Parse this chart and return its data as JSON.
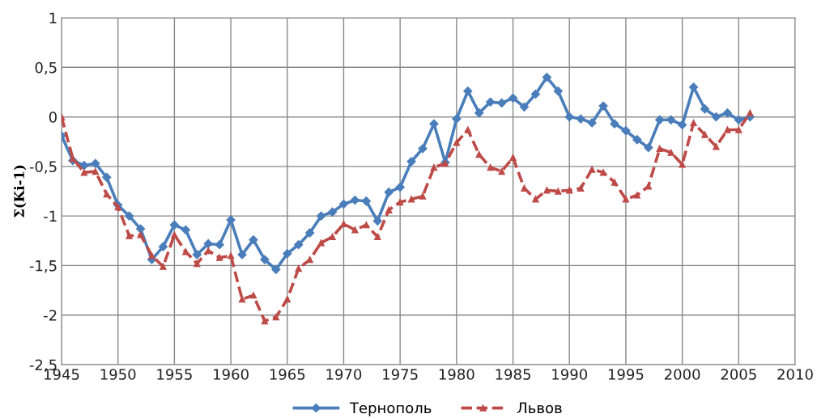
{
  "chart_data": {
    "type": "line",
    "ylabel": "Σ(Ki-1)",
    "x": [
      1945,
      1946,
      1947,
      1948,
      1949,
      1950,
      1951,
      1952,
      1953,
      1954,
      1955,
      1956,
      1957,
      1958,
      1959,
      1960,
      1961,
      1962,
      1963,
      1964,
      1965,
      1966,
      1967,
      1968,
      1969,
      1970,
      1971,
      1972,
      1973,
      1974,
      1975,
      1976,
      1977,
      1978,
      1979,
      1980,
      1981,
      1982,
      1983,
      1984,
      1985,
      1986,
      1987,
      1988,
      1989,
      1990,
      1991,
      1992,
      1993,
      1994,
      1995,
      1996,
      1997,
      1998,
      1999,
      2000,
      2001,
      2002,
      2003,
      2004,
      2005,
      2006
    ],
    "series": [
      {
        "name": "Тернополь",
        "color": "#4a7ebb",
        "marker": "diamond",
        "line_style": "solid",
        "values": [
          -0.19,
          -0.44,
          -0.49,
          -0.47,
          -0.61,
          -0.89,
          -1.0,
          -1.13,
          -1.44,
          -1.31,
          -1.09,
          -1.14,
          -1.39,
          -1.28,
          -1.29,
          -1.04,
          -1.39,
          -1.24,
          -1.44,
          -1.54,
          -1.38,
          -1.29,
          -1.17,
          -1.0,
          -0.96,
          -0.88,
          -0.84,
          -0.85,
          -1.05,
          -0.76,
          -0.71,
          -0.45,
          -0.32,
          -0.07,
          -0.46,
          -0.02,
          0.26,
          0.04,
          0.15,
          0.14,
          0.19,
          0.1,
          0.23,
          0.4,
          0.26,
          0,
          -0.02,
          -0.06,
          0.11,
          -0.07,
          -0.14,
          -0.23,
          -0.31,
          -0.03,
          -0.03,
          -0.08,
          0.3,
          0.08,
          0,
          0.04,
          -0.03,
          0.0
        ]
      },
      {
        "name": "Львов",
        "color": "#be4b48",
        "marker": "triangle",
        "line_style": "dashed",
        "values": [
          0,
          -0.42,
          -0.56,
          -0.55,
          -0.78,
          -0.91,
          -1.2,
          -1.19,
          -1.4,
          -1.51,
          -1.19,
          -1.36,
          -1.48,
          -1.35,
          -1.42,
          -1.4,
          -1.84,
          -1.8,
          -2.06,
          -2.02,
          -1.84,
          -1.53,
          -1.44,
          -1.27,
          -1.21,
          -1.08,
          -1.14,
          -1.09,
          -1.21,
          -0.94,
          -0.86,
          -0.83,
          -0.8,
          -0.51,
          -0.47,
          -0.26,
          -0.13,
          -0.38,
          -0.51,
          -0.55,
          -0.41,
          -0.72,
          -0.83,
          -0.74,
          -0.75,
          -0.74,
          -0.72,
          -0.53,
          -0.56,
          -0.66,
          -0.83,
          -0.79,
          -0.7,
          -0.32,
          -0.36,
          -0.48,
          -0.06,
          -0.18,
          -0.3,
          -0.13,
          -0.13,
          0.04
        ]
      }
    ],
    "xlim": [
      1945,
      2010
    ],
    "xticks": [
      1945,
      1950,
      1955,
      1960,
      1965,
      1970,
      1975,
      1980,
      1985,
      1990,
      1995,
      2000,
      2005,
      2010
    ],
    "ylim": [
      -2.5,
      1
    ],
    "yticks": [
      {
        "value": -2.5,
        "label": "-2,5"
      },
      -2,
      {
        "value": -1.5,
        "label": "-1,5"
      },
      -1,
      {
        "value": -0.5,
        "label": "-0,5"
      },
      0,
      {
        "value": 0.5,
        "label": "0,5"
      },
      1
    ],
    "grid": true,
    "legend": "bottom"
  }
}
